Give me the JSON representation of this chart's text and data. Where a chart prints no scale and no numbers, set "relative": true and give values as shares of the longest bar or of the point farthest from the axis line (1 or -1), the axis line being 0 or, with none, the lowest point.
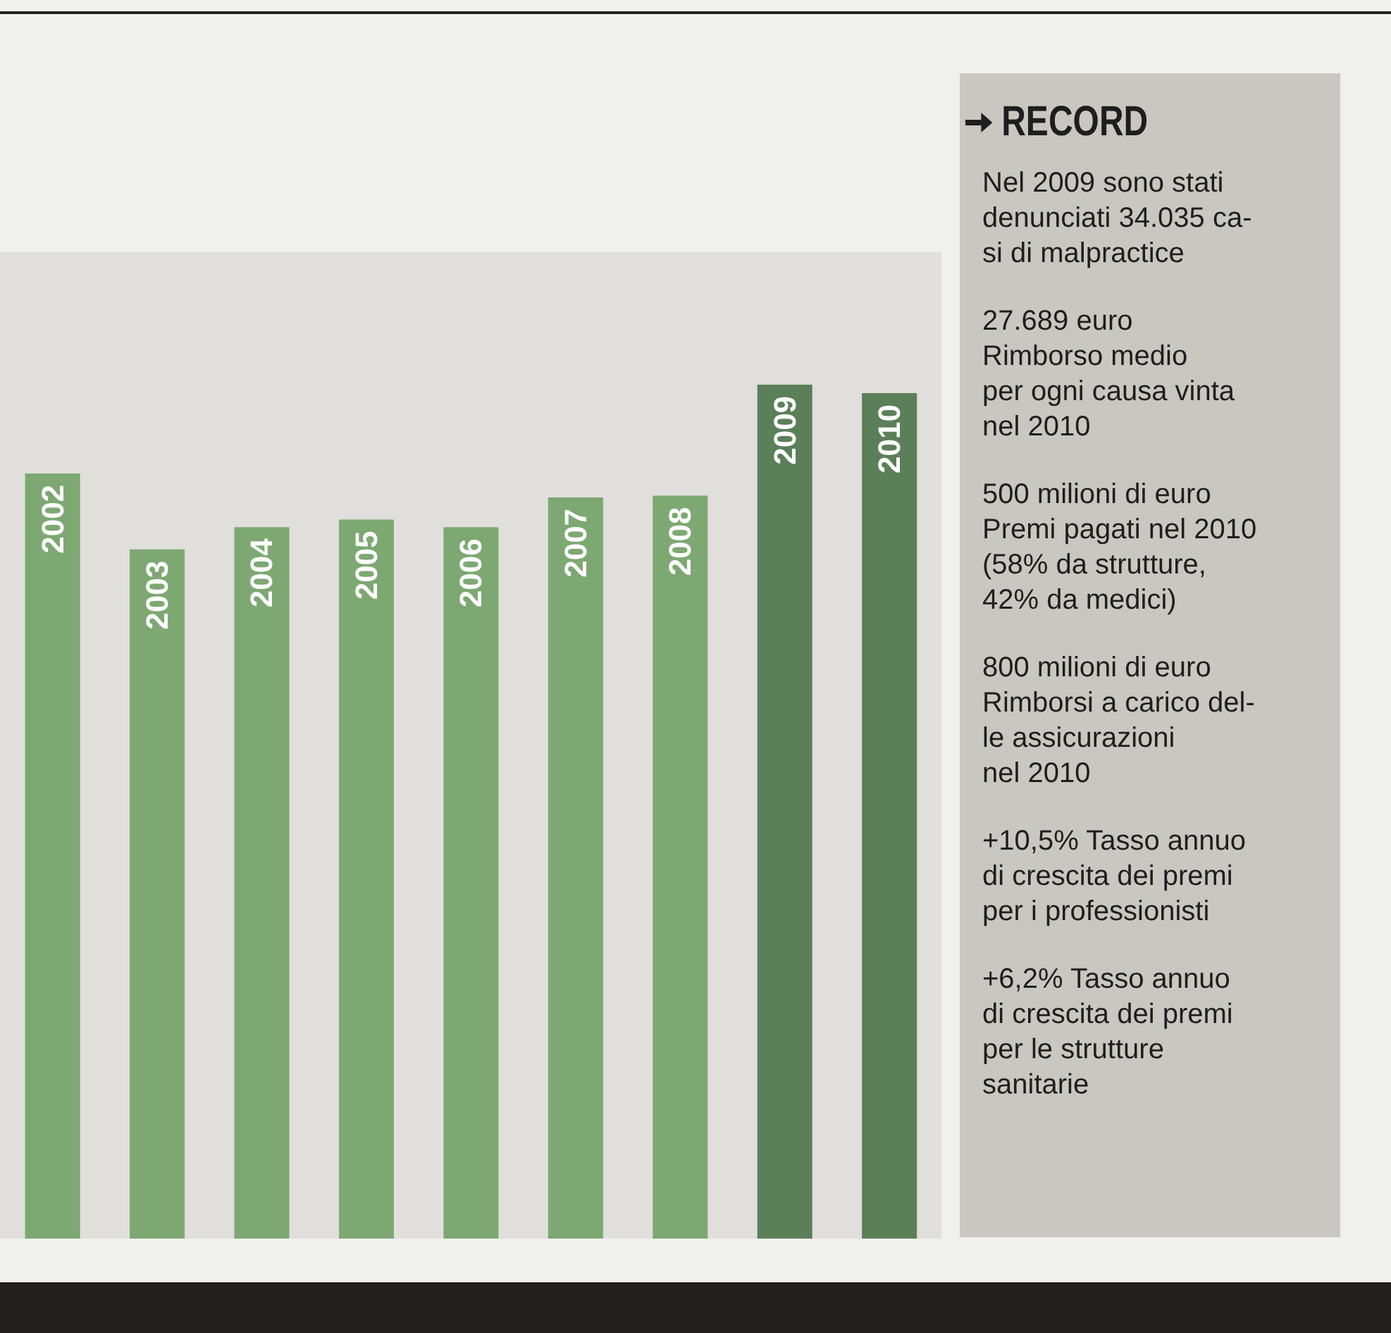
{
  "chart_data": [
    {
      "type": "bar",
      "relative": true,
      "categories": [
        "2002",
        "2003",
        "2004",
        "2005",
        "2006",
        "2007",
        "2008",
        "2009",
        "2010"
      ],
      "values": [
        0.896,
        0.807,
        0.833,
        0.842,
        0.833,
        0.868,
        0.87,
        1,
        0.99
      ],
      "colors": [
        "#7da872",
        "#7da872",
        "#7da872",
        "#7da872",
        "#7da872",
        "#7da872",
        "#7da872",
        "#5b7f59",
        "#5b7f59"
      ]
    },
    {
      "type": "other",
      "title": "RECORD",
      "annotations": [
        "Nel 2009 sono stati\ndenunciati 34.035 ca-\nsi di malpractice",
        "27.689 euro\nRimborso medio\nper ogni causa vinta\nnel 2010",
        "500 milioni di euro\nPremi pagati nel 2010\n(58% da strutture,\n42% da medici)",
        "800 milioni di euro\nRimborsi a carico del-\nle assicurazioni\nnel 2010",
        "+10,5% Tasso annuo\ndi crescita dei premi\nper i professionisti",
        "+6,2% Tasso annuo\ndi crescita dei premi\nper le strutture\nsanitarie"
      ]
    }
  ]
}
